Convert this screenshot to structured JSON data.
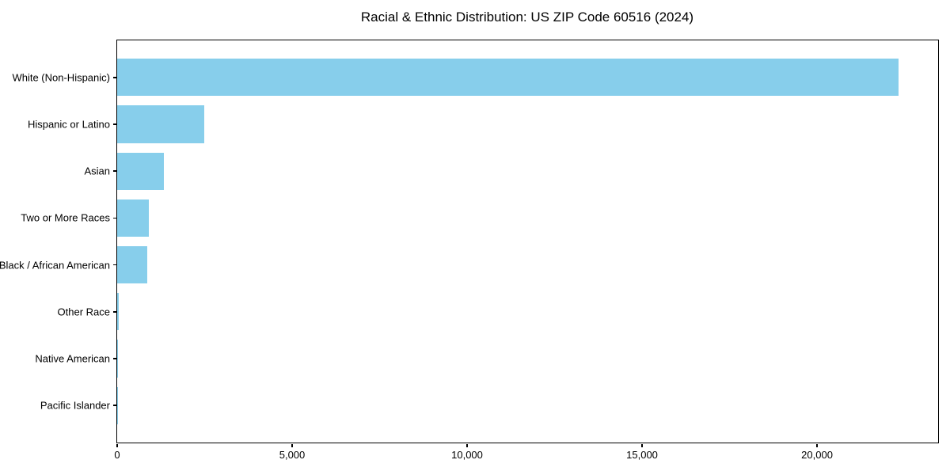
{
  "chart_data": {
    "type": "bar",
    "orientation": "horizontal",
    "title": "Racial & Ethnic Distribution: US ZIP Code 60516 (2024)",
    "categories": [
      "White (Non-Hispanic)",
      "Hispanic or Latino",
      "Asian",
      "Two or More Races",
      "Black / African American",
      "Other Race",
      "Native American",
      "Pacific Islander"
    ],
    "values": [
      22340,
      2490,
      1335,
      910,
      855,
      40,
      12,
      4
    ],
    "xlabel": "",
    "ylabel": "",
    "xlim": [
      0,
      23460
    ],
    "xticks": [
      0,
      5000,
      10000,
      15000,
      20000
    ],
    "xtick_labels": [
      "0",
      "5,000",
      "10,000",
      "15,000",
      "20,000"
    ],
    "bar_color": "#87CEEB",
    "bar_height_fraction": 0.8,
    "grid": false,
    "legend": "none",
    "background_color": "#ffffff",
    "spine_color": "#000000"
  }
}
